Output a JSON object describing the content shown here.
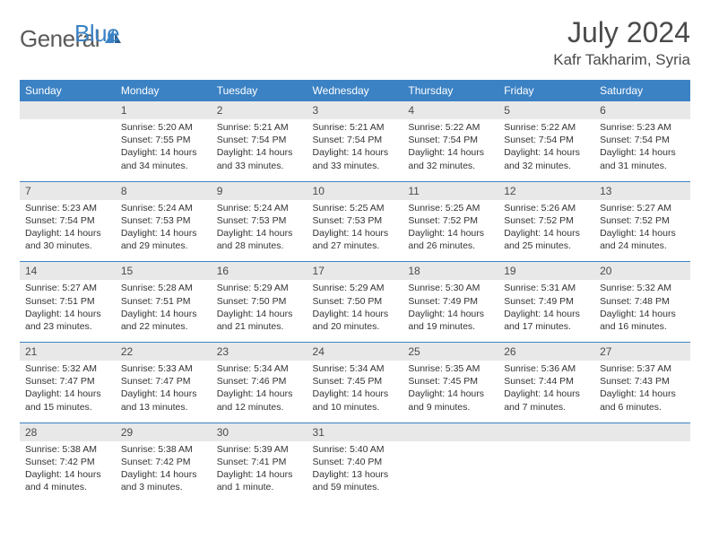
{
  "brand": {
    "name_a": "General",
    "name_b": "Blue"
  },
  "title": "July 2024",
  "location": "Kafr Takharim, Syria",
  "colors": {
    "header_bg": "#3b82c4",
    "daynum_bg": "#e8e8e8",
    "text": "#333333"
  },
  "day_headers": [
    "Sunday",
    "Monday",
    "Tuesday",
    "Wednesday",
    "Thursday",
    "Friday",
    "Saturday"
  ],
  "weeks": [
    {
      "nums": [
        "",
        "1",
        "2",
        "3",
        "4",
        "5",
        "6"
      ],
      "cells": [
        "",
        "Sunrise: 5:20 AM\nSunset: 7:55 PM\nDaylight: 14 hours and 34 minutes.",
        "Sunrise: 5:21 AM\nSunset: 7:54 PM\nDaylight: 14 hours and 33 minutes.",
        "Sunrise: 5:21 AM\nSunset: 7:54 PM\nDaylight: 14 hours and 33 minutes.",
        "Sunrise: 5:22 AM\nSunset: 7:54 PM\nDaylight: 14 hours and 32 minutes.",
        "Sunrise: 5:22 AM\nSunset: 7:54 PM\nDaylight: 14 hours and 32 minutes.",
        "Sunrise: 5:23 AM\nSunset: 7:54 PM\nDaylight: 14 hours and 31 minutes."
      ]
    },
    {
      "nums": [
        "7",
        "8",
        "9",
        "10",
        "11",
        "12",
        "13"
      ],
      "cells": [
        "Sunrise: 5:23 AM\nSunset: 7:54 PM\nDaylight: 14 hours and 30 minutes.",
        "Sunrise: 5:24 AM\nSunset: 7:53 PM\nDaylight: 14 hours and 29 minutes.",
        "Sunrise: 5:24 AM\nSunset: 7:53 PM\nDaylight: 14 hours and 28 minutes.",
        "Sunrise: 5:25 AM\nSunset: 7:53 PM\nDaylight: 14 hours and 27 minutes.",
        "Sunrise: 5:25 AM\nSunset: 7:52 PM\nDaylight: 14 hours and 26 minutes.",
        "Sunrise: 5:26 AM\nSunset: 7:52 PM\nDaylight: 14 hours and 25 minutes.",
        "Sunrise: 5:27 AM\nSunset: 7:52 PM\nDaylight: 14 hours and 24 minutes."
      ]
    },
    {
      "nums": [
        "14",
        "15",
        "16",
        "17",
        "18",
        "19",
        "20"
      ],
      "cells": [
        "Sunrise: 5:27 AM\nSunset: 7:51 PM\nDaylight: 14 hours and 23 minutes.",
        "Sunrise: 5:28 AM\nSunset: 7:51 PM\nDaylight: 14 hours and 22 minutes.",
        "Sunrise: 5:29 AM\nSunset: 7:50 PM\nDaylight: 14 hours and 21 minutes.",
        "Sunrise: 5:29 AM\nSunset: 7:50 PM\nDaylight: 14 hours and 20 minutes.",
        "Sunrise: 5:30 AM\nSunset: 7:49 PM\nDaylight: 14 hours and 19 minutes.",
        "Sunrise: 5:31 AM\nSunset: 7:49 PM\nDaylight: 14 hours and 17 minutes.",
        "Sunrise: 5:32 AM\nSunset: 7:48 PM\nDaylight: 14 hours and 16 minutes."
      ]
    },
    {
      "nums": [
        "21",
        "22",
        "23",
        "24",
        "25",
        "26",
        "27"
      ],
      "cells": [
        "Sunrise: 5:32 AM\nSunset: 7:47 PM\nDaylight: 14 hours and 15 minutes.",
        "Sunrise: 5:33 AM\nSunset: 7:47 PM\nDaylight: 14 hours and 13 minutes.",
        "Sunrise: 5:34 AM\nSunset: 7:46 PM\nDaylight: 14 hours and 12 minutes.",
        "Sunrise: 5:34 AM\nSunset: 7:45 PM\nDaylight: 14 hours and 10 minutes.",
        "Sunrise: 5:35 AM\nSunset: 7:45 PM\nDaylight: 14 hours and 9 minutes.",
        "Sunrise: 5:36 AM\nSunset: 7:44 PM\nDaylight: 14 hours and 7 minutes.",
        "Sunrise: 5:37 AM\nSunset: 7:43 PM\nDaylight: 14 hours and 6 minutes."
      ]
    },
    {
      "nums": [
        "28",
        "29",
        "30",
        "31",
        "",
        "",
        ""
      ],
      "cells": [
        "Sunrise: 5:38 AM\nSunset: 7:42 PM\nDaylight: 14 hours and 4 minutes.",
        "Sunrise: 5:38 AM\nSunset: 7:42 PM\nDaylight: 14 hours and 3 minutes.",
        "Sunrise: 5:39 AM\nSunset: 7:41 PM\nDaylight: 14 hours and 1 minute.",
        "Sunrise: 5:40 AM\nSunset: 7:40 PM\nDaylight: 13 hours and 59 minutes.",
        "",
        "",
        ""
      ]
    }
  ]
}
